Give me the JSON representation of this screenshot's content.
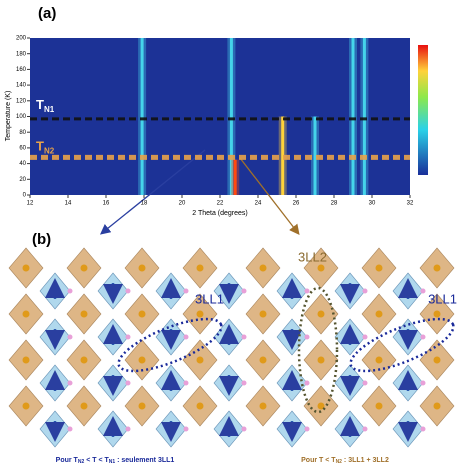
{
  "panels": [
    "(a)",
    "(b)"
  ],
  "chart_data": {
    "type": "heatmap",
    "x_label": "2 Theta (degrees)",
    "y_label": "Temperature (K)",
    "xlim": [
      12,
      32
    ],
    "xticks": [
      12,
      14,
      16,
      18,
      20,
      22,
      24,
      26,
      28,
      30,
      32
    ],
    "ylim": [
      0,
      200
    ],
    "yticks": [
      0,
      20,
      40,
      60,
      80,
      100,
      120,
      140,
      160,
      180,
      200
    ],
    "peaks": {
      "x": [
        17.9,
        22.6,
        22.8,
        25.3,
        27.0,
        29.0,
        29.6
      ],
      "top": [
        200,
        200,
        45,
        100,
        100,
        200,
        200
      ],
      "colors": [
        "#45d4ea",
        "#45d4ea",
        "#ff4a10",
        "#ffd23a",
        "#45d4ea",
        "#45d4ea",
        "#45d4ea"
      ]
    },
    "transitions": [
      {
        "label": "T",
        "sub": "N1",
        "value": 97,
        "color": "#111111"
      },
      {
        "label": "T",
        "sub": "N2",
        "value": 48,
        "color": "#e8a34a"
      }
    ]
  },
  "structures": [
    {
      "labels": [
        "3LL1"
      ],
      "caption": [
        "Pour T",
        "N2",
        " < T < T",
        "N1",
        " : seulement 3LL1"
      ]
    },
    {
      "labels": [
        "3LL2",
        "3LL1"
      ],
      "caption": [
        "Pour T < T",
        "N2",
        " : 3LL1 + 3LL2"
      ]
    }
  ]
}
